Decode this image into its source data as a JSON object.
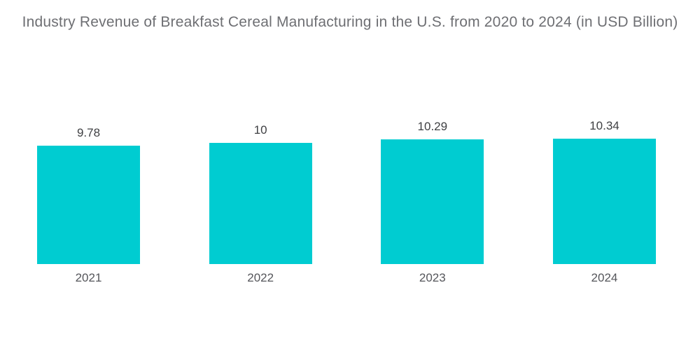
{
  "chart_data": {
    "type": "bar",
    "title": "Industry Revenue of Breakfast Cereal Manufacturing in the U.S. from 2020 to 2024 (in USD Billion)",
    "categories": [
      "2021",
      "2022",
      "2023",
      "2024"
    ],
    "values": [
      9.78,
      10,
      10.29,
      10.34
    ],
    "value_labels": [
      "9.78",
      "10",
      "10.29",
      "10.34"
    ],
    "xlabel": "",
    "ylabel": "",
    "ylim": [
      0,
      10.34
    ],
    "grid": false,
    "axes_visible": false,
    "legend": "none",
    "colors": {
      "bar": "#00ccd1",
      "title_text": "#6e6f73",
      "value_label_text": "#3f4043",
      "category_label_text": "#55565b",
      "background": "#ffffff"
    }
  }
}
